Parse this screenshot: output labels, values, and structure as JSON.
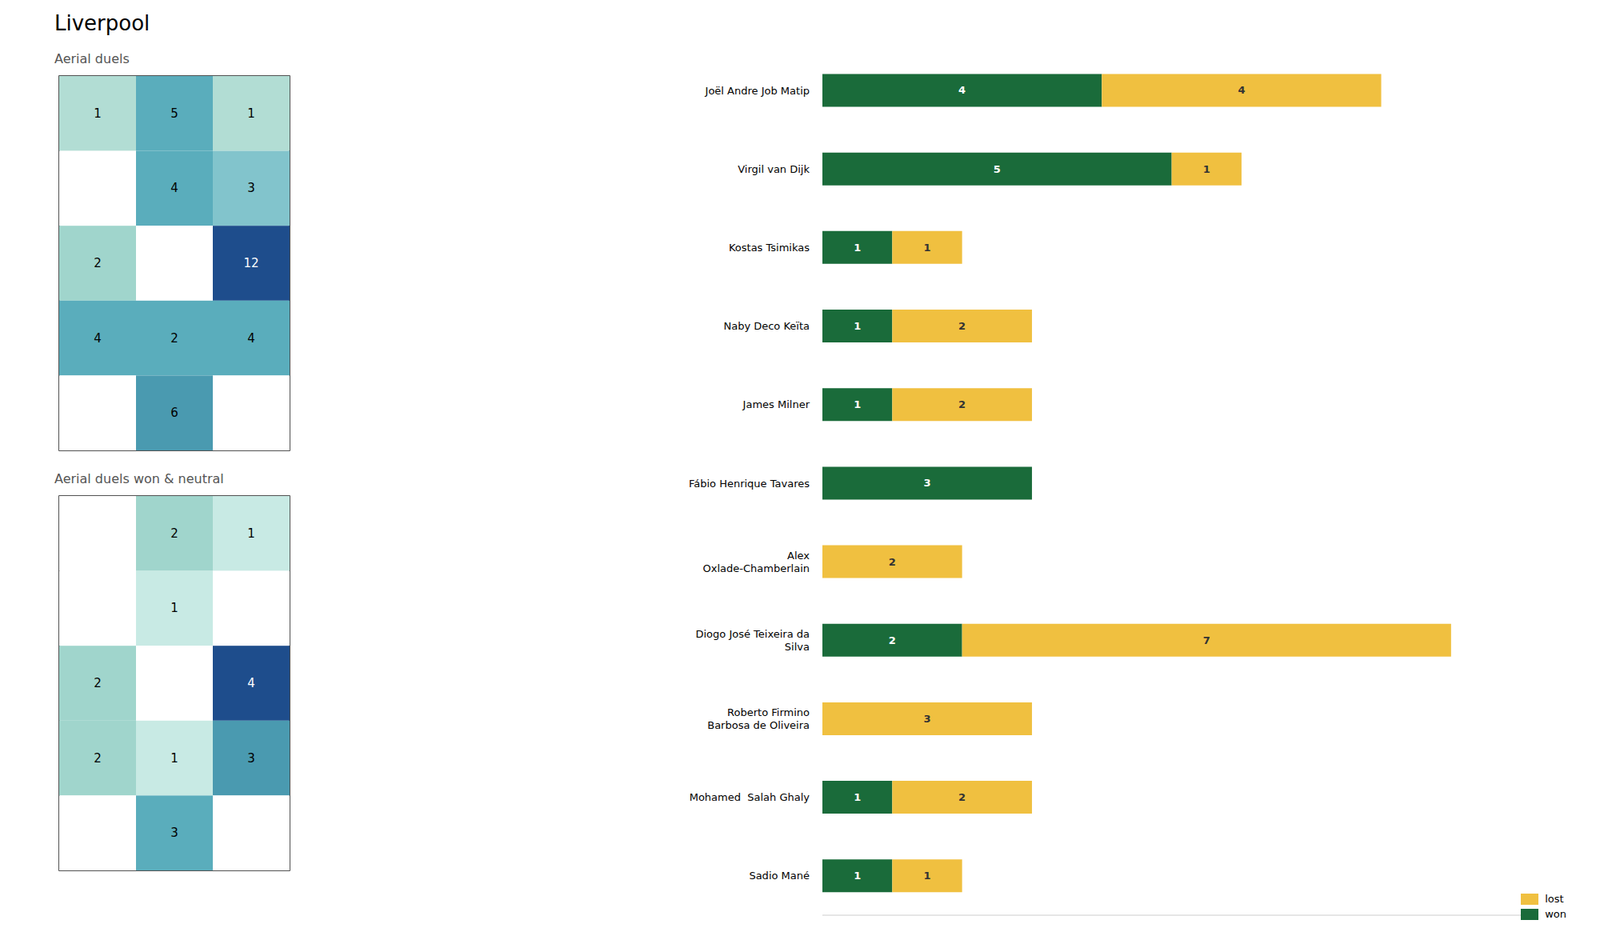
{
  "title": "Liverpool",
  "chart_data": [
    {
      "type": "heatmap",
      "title": "Aerial duels",
      "cells": [
        {
          "row": 0,
          "col": 0,
          "value": 1,
          "color": "#b2ddd4"
        },
        {
          "row": 0,
          "col": 1,
          "value": 5,
          "color": "#5aadbc"
        },
        {
          "row": 0,
          "col": 2,
          "value": 1,
          "color": "#b2ddd4"
        },
        {
          "row": 1,
          "col": 0,
          "value": null,
          "color": "#ffffff"
        },
        {
          "row": 1,
          "col": 1,
          "value": 4,
          "color": "#5aadbc"
        },
        {
          "row": 1,
          "col": 2,
          "value": 3,
          "color": "#82c4cc"
        },
        {
          "row": 2,
          "col": 0,
          "value": 2,
          "color": "#a0d5cc"
        },
        {
          "row": 2,
          "col": 1,
          "value": null,
          "color": "#ffffff"
        },
        {
          "row": 2,
          "col": 2,
          "value": 12,
          "color": "#1e4d8c"
        },
        {
          "row": 3,
          "col": 0,
          "value": 4,
          "color": "#5aadbc"
        },
        {
          "row": 3,
          "col": 1,
          "value": 2,
          "color": "#5aadbc"
        },
        {
          "row": 3,
          "col": 2,
          "value": 4,
          "color": "#5aadbc"
        },
        {
          "row": 4,
          "col": 0,
          "value": null,
          "color": "#ffffff"
        },
        {
          "row": 4,
          "col": 1,
          "value": 6,
          "color": "#4a9ab0"
        },
        {
          "row": 4,
          "col": 2,
          "value": null,
          "color": "#ffffff"
        }
      ]
    },
    {
      "type": "heatmap",
      "title": "Aerial duels won & neutral",
      "cells": [
        {
          "row": 0,
          "col": 0,
          "value": null,
          "color": "#ffffff"
        },
        {
          "row": 0,
          "col": 1,
          "value": 2,
          "color": "#a0d5cc"
        },
        {
          "row": 0,
          "col": 2,
          "value": 1,
          "color": "#c8eae4"
        },
        {
          "row": 1,
          "col": 0,
          "value": null,
          "color": "#ffffff"
        },
        {
          "row": 1,
          "col": 1,
          "value": 1,
          "color": "#c8eae4"
        },
        {
          "row": 1,
          "col": 2,
          "value": null,
          "color": "#ffffff"
        },
        {
          "row": 2,
          "col": 0,
          "value": 2,
          "color": "#a0d5cc"
        },
        {
          "row": 2,
          "col": 1,
          "value": null,
          "color": "#ffffff"
        },
        {
          "row": 2,
          "col": 2,
          "value": 4,
          "color": "#1e4d8c"
        },
        {
          "row": 3,
          "col": 0,
          "value": 2,
          "color": "#a0d5cc"
        },
        {
          "row": 3,
          "col": 1,
          "value": 1,
          "color": "#c8eae4"
        },
        {
          "row": 3,
          "col": 2,
          "value": 3,
          "color": "#4a9ab0"
        },
        {
          "row": 4,
          "col": 0,
          "value": null,
          "color": "#ffffff"
        },
        {
          "row": 4,
          "col": 1,
          "value": 3,
          "color": "#5aadbc"
        },
        {
          "row": 4,
          "col": 2,
          "value": null,
          "color": "#ffffff"
        }
      ]
    },
    {
      "type": "bar",
      "orientation": "horizontal",
      "stacked": true,
      "categories": [
        "Joël Andre Job Matip",
        "Virgil van Dijk",
        "Kostas Tsimikas",
        "Naby Deco Keïta",
        "James Milner",
        "Fábio Henrique Tavares",
        "Alex\nOxlade-Chamberlain",
        "Diogo José Teixeira da\nSilva",
        "Roberto Firmino\nBarbosa de Oliveira",
        "Mohamed  Salah Ghaly",
        "Sadio Mané"
      ],
      "series": [
        {
          "name": "won",
          "color": "#1a6b3a",
          "values": [
            4,
            5,
            1,
            1,
            1,
            3,
            0,
            2,
            0,
            1,
            1
          ]
        },
        {
          "name": "lost",
          "color": "#f0c040",
          "values": [
            4,
            1,
            1,
            2,
            2,
            0,
            2,
            7,
            3,
            2,
            1
          ]
        }
      ],
      "xlim": [
        0,
        10
      ],
      "tick_labels": false,
      "data_labels": true,
      "legend": "lower right",
      "grid": false
    }
  ]
}
